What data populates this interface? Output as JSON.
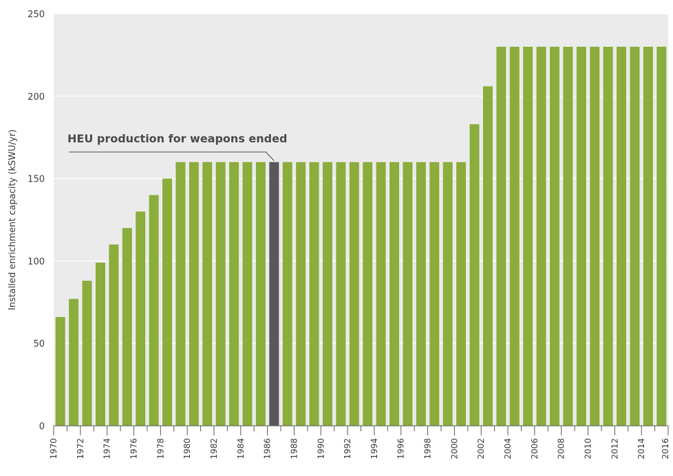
{
  "chart_data": {
    "type": "bar",
    "title": "",
    "xlabel": "",
    "ylabel": "Installed enrichment capacity (kSWU/yr)",
    "ylim": [
      0,
      250
    ],
    "yticks": [
      0,
      50,
      100,
      150,
      200,
      250
    ],
    "grid": true,
    "categories": [
      "1970",
      "1971",
      "1972",
      "1973",
      "1974",
      "1975",
      "1976",
      "1977",
      "1978",
      "1979",
      "1980",
      "1981",
      "1982",
      "1983",
      "1984",
      "1985",
      "1986",
      "1987",
      "1988",
      "1989",
      "1990",
      "1991",
      "1992",
      "1993",
      "1994",
      "1995",
      "1996",
      "1997",
      "1998",
      "1999",
      "2000",
      "2001",
      "2002",
      "2003",
      "2004",
      "2005",
      "2006",
      "2007",
      "2008",
      "2009",
      "2010",
      "2011",
      "2012",
      "2013",
      "2014",
      "2015"
    ],
    "x_tick_labels": [
      "1970",
      "1972",
      "1974",
      "1976",
      "1978",
      "1980",
      "1982",
      "1984",
      "1986",
      "1988",
      "1990",
      "1992",
      "1994",
      "1996",
      "1998",
      "2000",
      "2002",
      "2004",
      "2006",
      "2008",
      "2010",
      "2012",
      "2014",
      "2016"
    ],
    "values": [
      66,
      77,
      88,
      99,
      110,
      120,
      130,
      140,
      150,
      160,
      160,
      160,
      160,
      160,
      160,
      160,
      160,
      160,
      160,
      160,
      160,
      160,
      160,
      160,
      160,
      160,
      160,
      160,
      160,
      160,
      160,
      183,
      206,
      230,
      230,
      230,
      230,
      230,
      230,
      230,
      230,
      230,
      230,
      230,
      230,
      230
    ],
    "highlight_category": "1986",
    "colors": {
      "bar": "#8aad3b",
      "highlight": "#58585a",
      "plot_bg": "#ebebeb",
      "grid": "#ffffff"
    },
    "annotation": {
      "text": "HEU production for weapons ended",
      "category": "1986"
    }
  }
}
